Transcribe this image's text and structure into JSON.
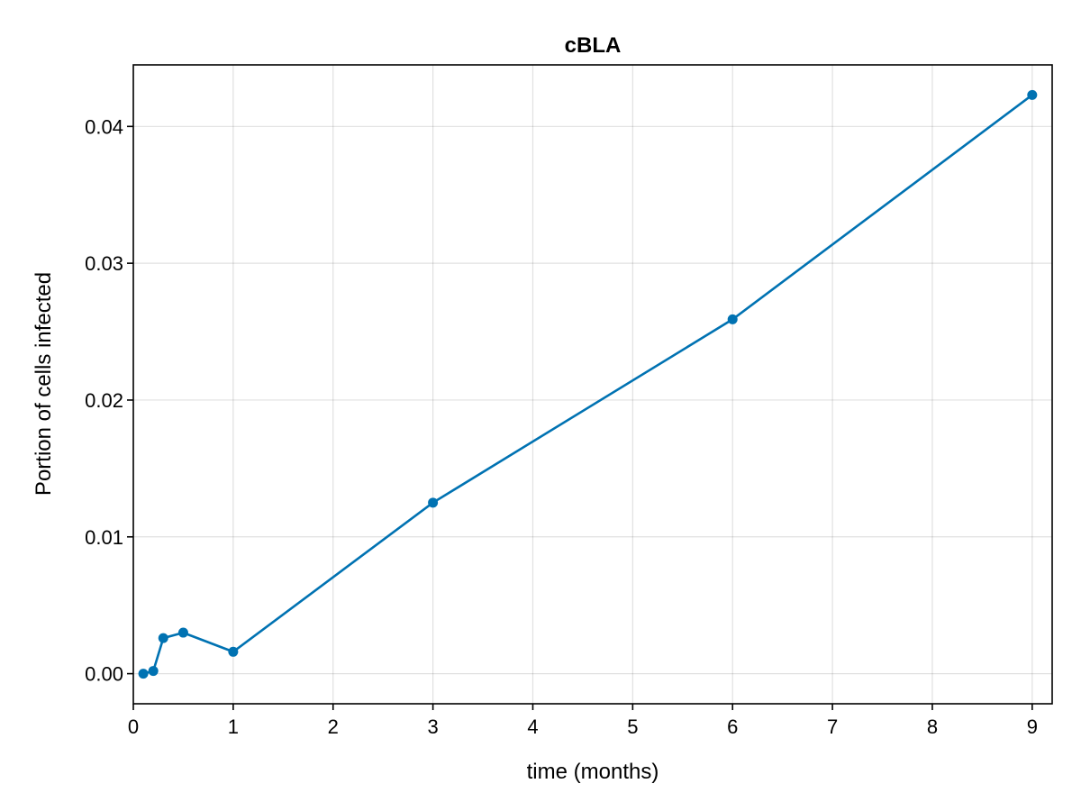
{
  "chart_data": {
    "type": "line",
    "title": "cBLA",
    "xlabel": "time (months)",
    "ylabel": "Portion of cells infected",
    "xlim": [
      0,
      9.2
    ],
    "ylim": [
      -0.0022,
      0.0445
    ],
    "xticks": [
      0,
      1,
      2,
      3,
      4,
      5,
      6,
      7,
      8,
      9
    ],
    "xtick_labels": [
      "0",
      "1",
      "2",
      "3",
      "4",
      "5",
      "6",
      "7",
      "8",
      "9"
    ],
    "yticks": [
      0.0,
      0.01,
      0.02,
      0.03,
      0.04
    ],
    "ytick_labels": [
      "0.00",
      "0.01",
      "0.02",
      "0.03",
      "0.04"
    ],
    "grid": true,
    "legend": "none",
    "series": [
      {
        "color": "#0072b2",
        "markers": true,
        "x": [
          0.1,
          0.2,
          0.3,
          0.5,
          1,
          3,
          6,
          9
        ],
        "y": [
          0.0,
          0.0002,
          0.0026,
          0.003,
          0.0016,
          0.0125,
          0.0259,
          0.0423
        ]
      }
    ]
  }
}
